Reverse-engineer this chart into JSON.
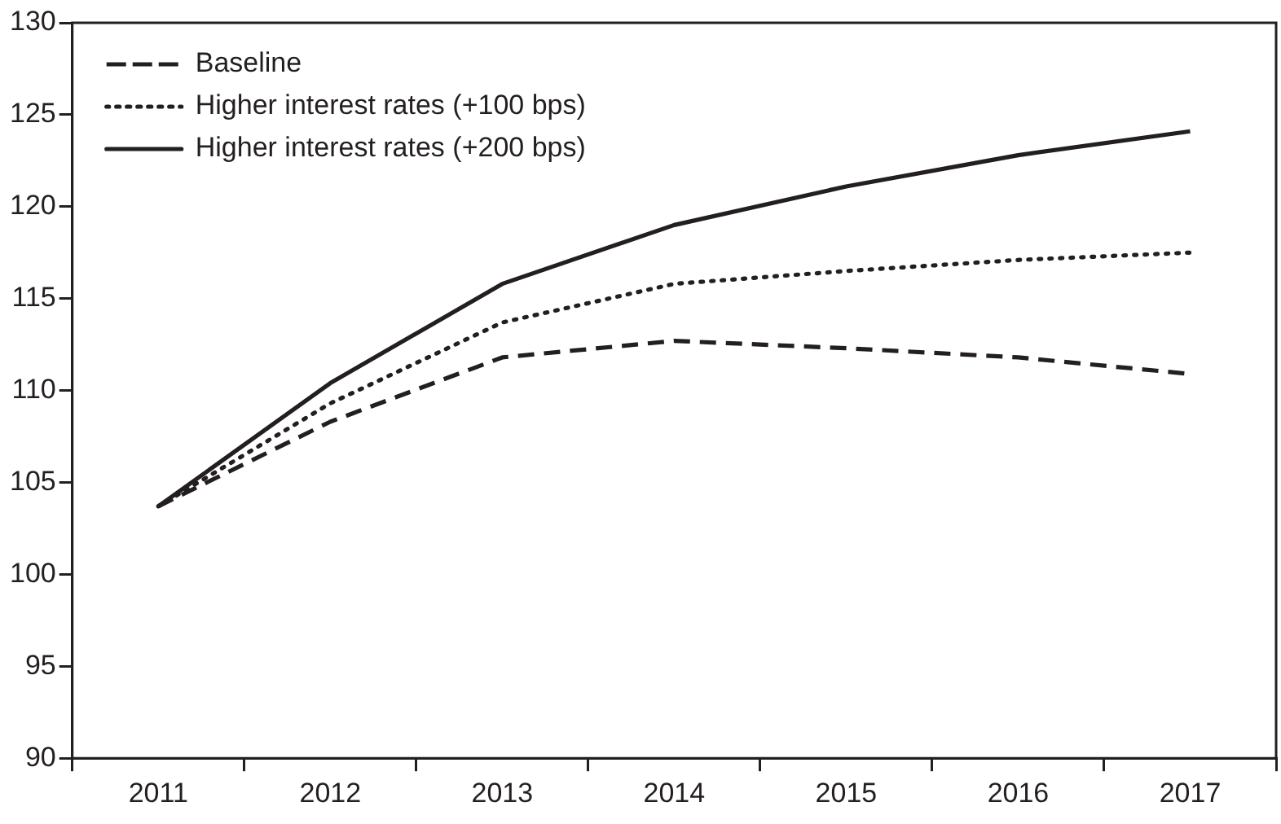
{
  "chart_data": {
    "type": "line",
    "categories": [
      "2011",
      "2012",
      "2013",
      "2014",
      "2015",
      "2016",
      "2017"
    ],
    "series": [
      {
        "name": "Baseline",
        "color": "#231f20",
        "line_style": "dashed",
        "values": [
          103.7,
          108.3,
          111.8,
          112.7,
          112.3,
          111.8,
          110.9
        ]
      },
      {
        "name": "Higher interest rates (+100 bps)",
        "color": "#231f20",
        "line_style": "dotted",
        "values": [
          103.7,
          109.3,
          113.7,
          115.8,
          116.5,
          117.1,
          117.5
        ]
      },
      {
        "name": "Higher interest rates (+200 bps)",
        "color": "#231f20",
        "line_style": "solid",
        "values": [
          103.7,
          110.4,
          115.8,
          119.0,
          121.1,
          122.8,
          124.1
        ]
      }
    ],
    "ylim": [
      90,
      130
    ],
    "yticks": [
      90,
      95,
      100,
      105,
      110,
      115,
      120,
      125,
      130
    ],
    "grid": false,
    "legend": "top left",
    "marker": "none"
  }
}
